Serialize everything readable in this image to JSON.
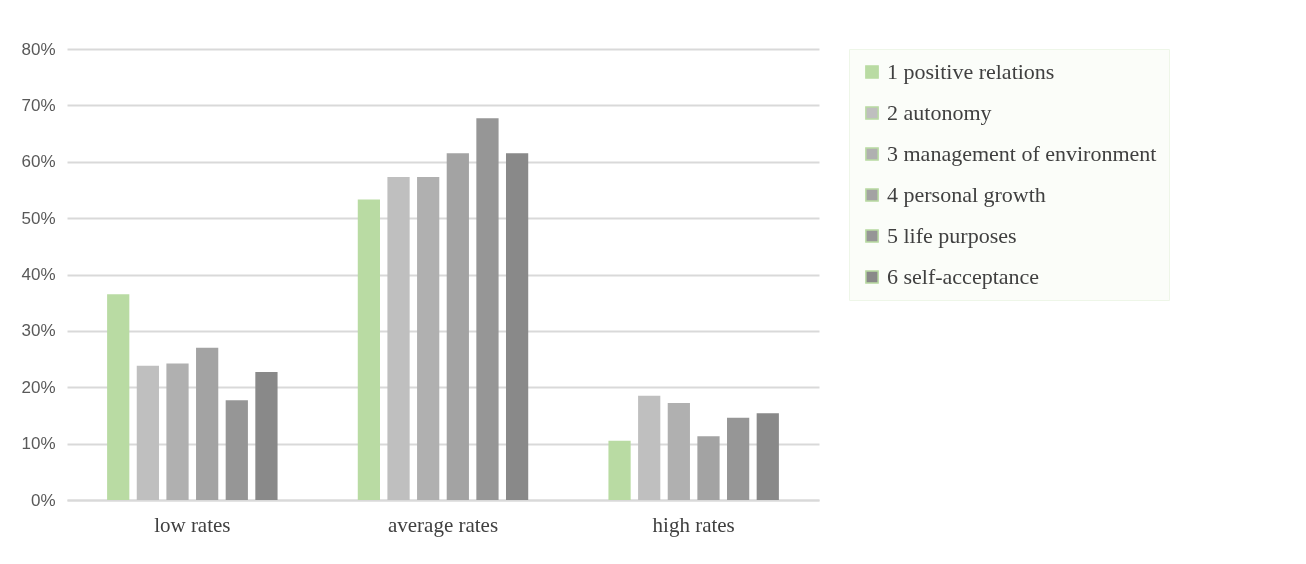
{
  "chart_data": {
    "type": "bar",
    "categories": [
      "low rates",
      "average rates",
      "high rates"
    ],
    "series": [
      {
        "name": "1 positive relations",
        "color": "#b9dba3",
        "values": [
          36.5,
          53.3,
          10.5
        ]
      },
      {
        "name": "2 autonomy",
        "color": "#bfbfbf",
        "values": [
          23.8,
          57.3,
          18.5
        ]
      },
      {
        "name": "3 management of environment",
        "color": "#b0b0b0",
        "values": [
          24.2,
          57.3,
          17.2
        ]
      },
      {
        "name": "4 personal growth",
        "color": "#a3a3a3",
        "values": [
          27,
          61.5,
          11.3
        ]
      },
      {
        "name": "5 life purposes",
        "color": "#969696",
        "values": [
          17.7,
          67.7,
          14.6
        ]
      },
      {
        "name": "6 self-acceptance",
        "color": "#898989",
        "values": [
          22.7,
          61.5,
          15.4
        ]
      }
    ],
    "ylim": [
      0,
      80
    ],
    "yticks": [
      {
        "value": 0,
        "label": "0%"
      },
      {
        "value": 10,
        "label": "10%"
      },
      {
        "value": 20,
        "label": "20%"
      },
      {
        "value": 30,
        "label": "30%"
      },
      {
        "value": 40,
        "label": "40%"
      },
      {
        "value": 50,
        "label": "50%"
      },
      {
        "value": 60,
        "label": "60%"
      },
      {
        "value": 70,
        "label": "70%"
      },
      {
        "value": 80,
        "label": "80%"
      }
    ],
    "grid": "y",
    "legend": "right"
  }
}
